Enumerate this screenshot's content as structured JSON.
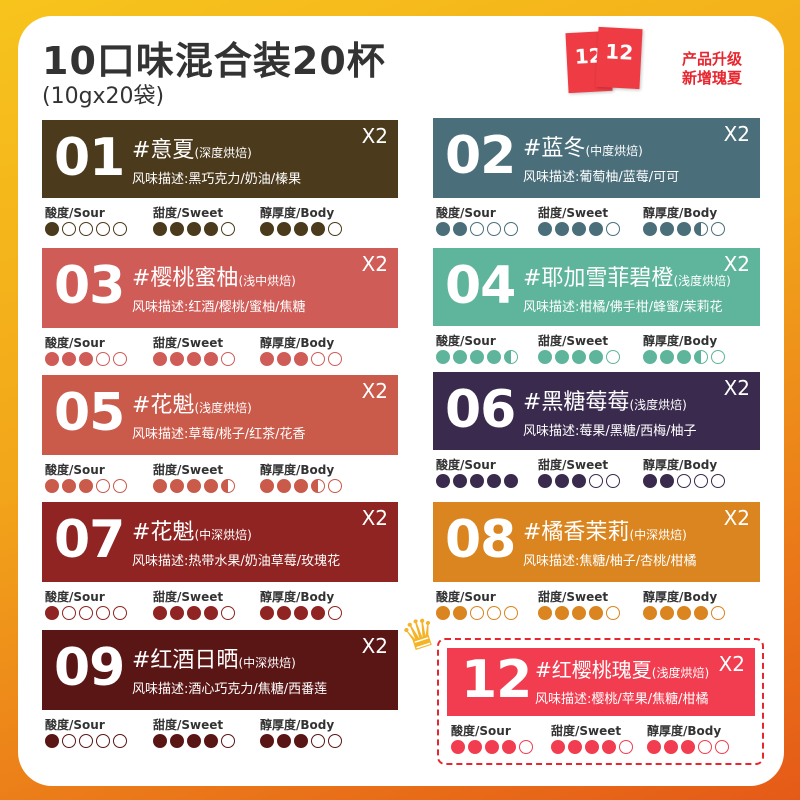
{
  "header": {
    "title": "10口味混合装20杯",
    "subtitle": "(10gx20袋)",
    "promo_line1": "产品升级",
    "promo_line2": "新增瑰夏",
    "pack_number": "12"
  },
  "metric_labels": {
    "sour": "酸度/Sour",
    "sweet": "甜度/Sweet",
    "body": "醇厚度/Body"
  },
  "max_rating": 5,
  "flavors": [
    {
      "num": "01",
      "name": "#意夏",
      "roast": "(深度烘焙)",
      "desc": "风味描述:黑巧克力/奶油/榛果",
      "qty": "X2",
      "color": "#4b3a1c",
      "sour": 1,
      "sweet": 4,
      "body": 4
    },
    {
      "num": "02",
      "name": "#蓝冬",
      "roast": "(中度烘焙)",
      "desc": "风味描述:葡萄柚/蓝莓/可可",
      "qty": "X2",
      "color": "#4a6f7b",
      "sour": 2,
      "sweet": 4,
      "body": 3.5
    },
    {
      "num": "03",
      "name": "#樱桃蜜柚",
      "roast": "(浅中烘焙)",
      "desc": "风味描述:红酒/樱桃/蜜柚/焦糖",
      "qty": "X2",
      "color": "#d05c58",
      "sour": 3,
      "sweet": 4,
      "body": 3
    },
    {
      "num": "04",
      "name": "#耶加雪菲碧橙",
      "roast": "(浅度烘焙)",
      "desc": "风味描述:柑橘/佛手柑/蜂蜜/茉莉花",
      "qty": "X2",
      "color": "#5fb59b",
      "sour": 4.5,
      "sweet": 4,
      "body": 3.5
    },
    {
      "num": "05",
      "name": "#花魁",
      "roast": "(浅度烘焙)",
      "desc": "风味描述:草莓/桃子/红茶/花香",
      "qty": "X2",
      "color": "#ca5a4a",
      "sour": 3,
      "sweet": 4.5,
      "body": 3.5
    },
    {
      "num": "06",
      "name": "#黑糖莓莓",
      "roast": "(浅度烘焙)",
      "desc": "风味描述:莓果/黑糖/西梅/柚子",
      "qty": "X2",
      "color": "#3a2a4e",
      "sour": 5,
      "sweet": 3,
      "body": 2
    },
    {
      "num": "07",
      "name": "#花魁",
      "roast": "(中深烘焙)",
      "desc": "风味描述:热带水果/奶油草莓/玫瑰花",
      "qty": "X2",
      "color": "#8f2422",
      "sour": 1,
      "sweet": 4,
      "body": 4
    },
    {
      "num": "08",
      "name": "#橘香茉莉",
      "roast": "(中深烘焙)",
      "desc": "风味描述:焦糖/柚子/杏桃/柑橘",
      "qty": "X2",
      "color": "#da851f",
      "sour": 2,
      "sweet": 4,
      "body": 4
    },
    {
      "num": "09",
      "name": "#红酒日晒",
      "roast": "(中深烘焙)",
      "desc": "风味描述:酒心巧克力/焦糖/西番莲",
      "qty": "X2",
      "color": "#5a1515",
      "sour": 1,
      "sweet": 4,
      "body": 3
    },
    {
      "num": "12",
      "name": "#红樱桃瑰夏",
      "roast": "(浅度烘焙)",
      "desc": "风味描述:樱桃/苹果/焦糖/柑橘",
      "qty": "X2",
      "color": "#f23d50",
      "sour": 4,
      "sweet": 4,
      "body": 3,
      "badge": "crown-icon"
    }
  ]
}
